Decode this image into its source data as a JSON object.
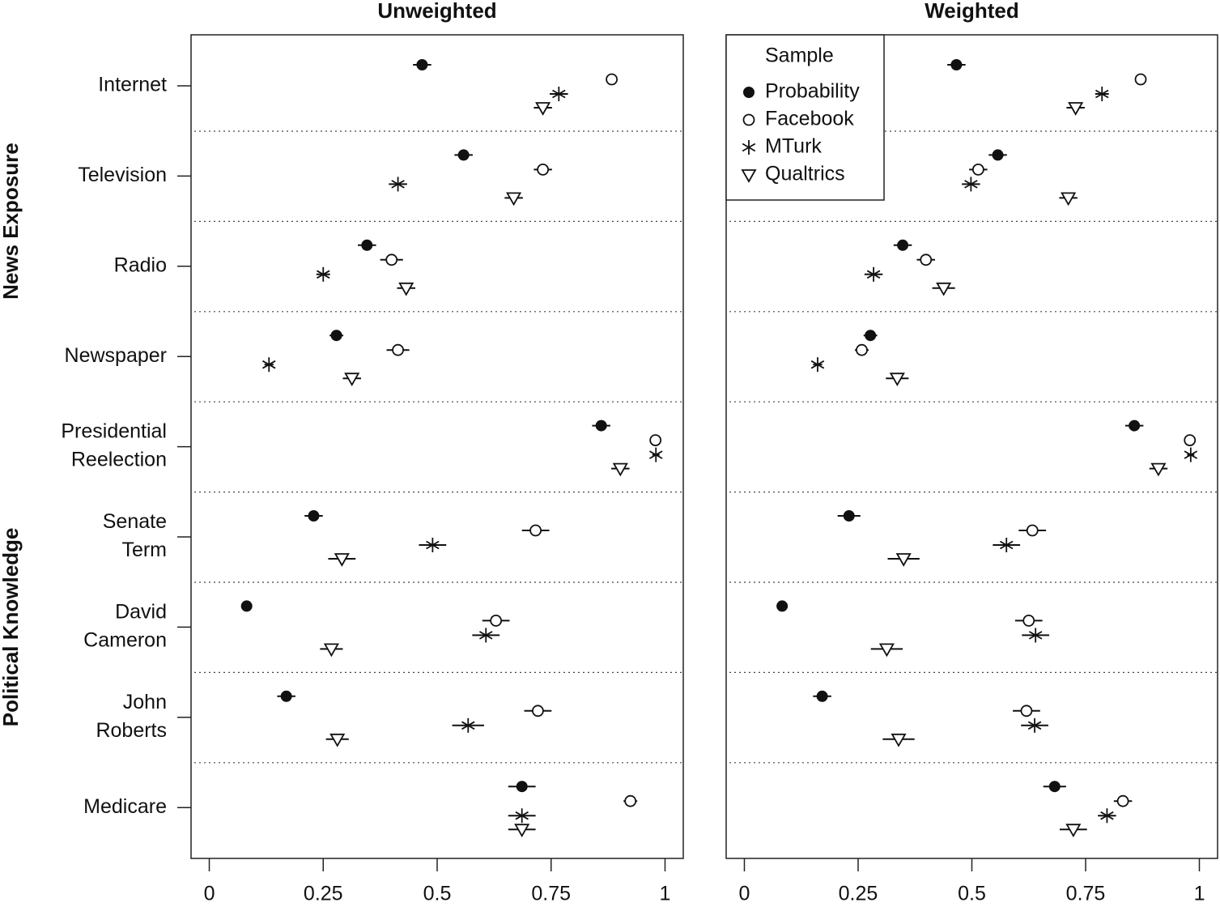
{
  "chart_data": {
    "type": "dotplot",
    "groups": [
      {
        "label": "News Exposure",
        "categories": [
          [
            "Internet"
          ],
          [
            "Television"
          ],
          [
            "Radio"
          ],
          [
            "Newspaper"
          ]
        ]
      },
      {
        "label": "Political Knowledge",
        "categories": [
          [
            "Presidential",
            "Reelection"
          ],
          [
            "Senate",
            "Term"
          ],
          [
            "David",
            "Cameron"
          ],
          [
            "John",
            "Roberts"
          ],
          [
            "Medicare"
          ]
        ]
      }
    ],
    "xlim": [
      -0.04,
      1.04
    ],
    "xticks": [
      0,
      0.25,
      0.5,
      0.75,
      1
    ],
    "panels": [
      {
        "title": "Unweighted",
        "series": [
          {
            "marker": "filled-circle",
            "color": "#111111",
            "values": [
              0.467,
              0.558,
              0.346,
              0.279,
              0.86,
              0.229,
              0.082,
              0.169,
              0.686
            ],
            "errors": [
              0.02,
              0.02,
              0.02,
              0.015,
              0.02,
              0.02,
              0.01,
              0.02,
              0.03
            ]
          },
          {
            "marker": "open-circle",
            "color": "#111111",
            "values": [
              0.883,
              0.732,
              0.4,
              0.414,
              0.979,
              0.716,
              0.629,
              0.721,
              0.924
            ],
            "errors": [
              0.01,
              0.02,
              0.025,
              0.025,
              0.005,
              0.03,
              0.03,
              0.03,
              0.015
            ]
          },
          {
            "marker": "asterisk",
            "color": "#111111",
            "values": [
              0.767,
              0.414,
              0.25,
              0.131,
              0.98,
              0.49,
              0.607,
              0.568,
              0.686
            ],
            "errors": [
              0.02,
              0.02,
              0.015,
              0.01,
              0.008,
              0.03,
              0.03,
              0.035,
              0.03
            ]
          },
          {
            "marker": "open-triangle-down",
            "color": "#111111",
            "values": [
              0.732,
              0.668,
              0.432,
              0.313,
              0.902,
              0.291,
              0.268,
              0.281,
              0.686
            ],
            "errors": [
              0.02,
              0.02,
              0.02,
              0.02,
              0.02,
              0.03,
              0.025,
              0.025,
              0.03
            ]
          }
        ]
      },
      {
        "title": "Weighted",
        "legend": {
          "title": "Sample",
          "corner": "top-left",
          "items": [
            {
              "name": "Probability"
            },
            {
              "name": "Facebook"
            },
            {
              "name": "MTurk"
            },
            {
              "name": "Qualtrics"
            }
          ]
        },
        "series": [
          {
            "marker": "filled-circle",
            "color": "#111111",
            "values": [
              0.466,
              0.557,
              0.348,
              0.277,
              0.857,
              0.23,
              0.083,
              0.171,
              0.682
            ],
            "errors": [
              0.02,
              0.02,
              0.02,
              0.015,
              0.02,
              0.025,
              0.01,
              0.02,
              0.025
            ]
          },
          {
            "marker": "open-circle",
            "color": "#111111",
            "values": [
              0.871,
              0.514,
              0.399,
              0.258,
              0.979,
              0.633,
              0.625,
              0.62,
              0.832
            ],
            "errors": [
              0.01,
              0.02,
              0.02,
              0.015,
              0.005,
              0.03,
              0.03,
              0.03,
              0.02
            ]
          },
          {
            "marker": "asterisk",
            "color": "#111111",
            "values": [
              0.786,
              0.498,
              0.284,
              0.161,
              0.981,
              0.576,
              0.64,
              0.638,
              0.797
            ],
            "errors": [
              0.015,
              0.02,
              0.02,
              0.01,
              0.008,
              0.03,
              0.03,
              0.03,
              0.02
            ]
          },
          {
            "marker": "open-triangle-down",
            "color": "#111111",
            "values": [
              0.728,
              0.712,
              0.438,
              0.336,
              0.91,
              0.35,
              0.313,
              0.339,
              0.723
            ],
            "errors": [
              0.02,
              0.02,
              0.025,
              0.025,
              0.02,
              0.035,
              0.035,
              0.035,
              0.03
            ]
          }
        ]
      }
    ]
  }
}
